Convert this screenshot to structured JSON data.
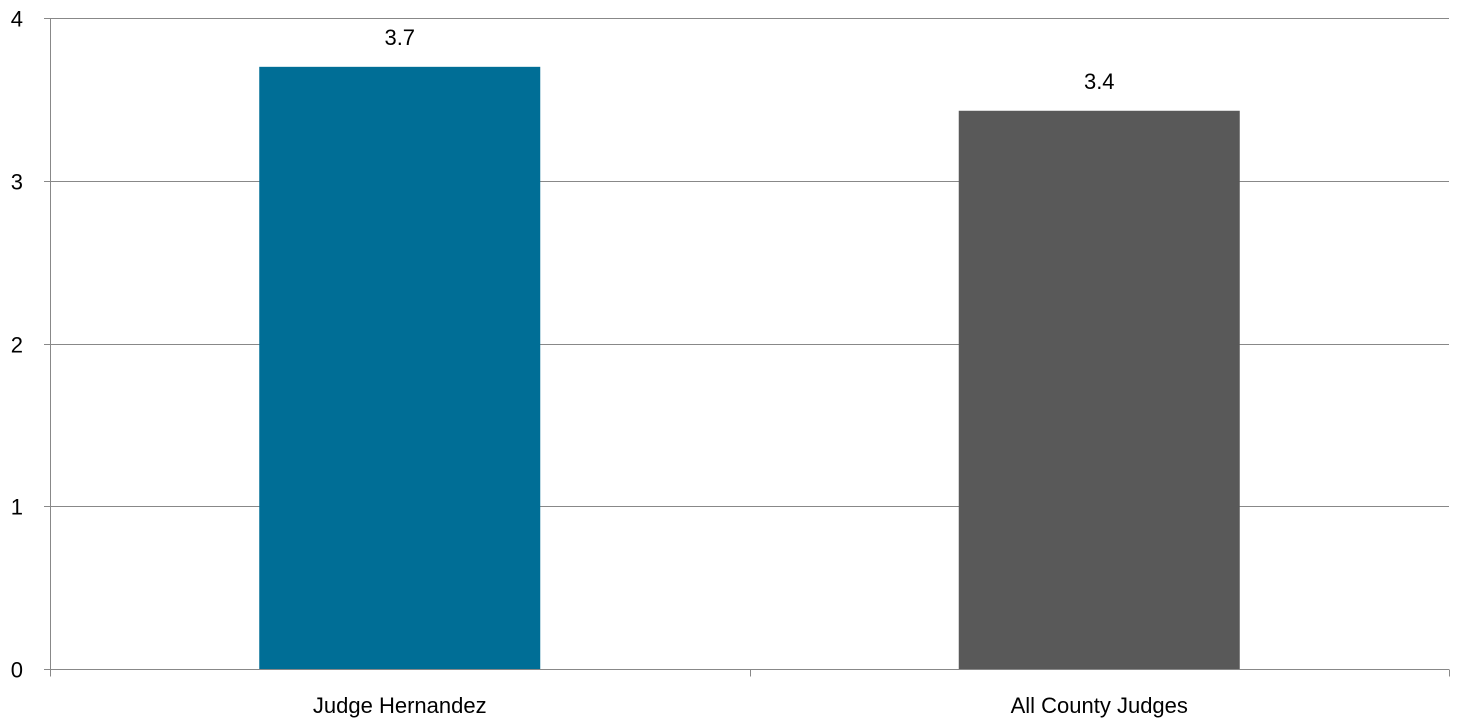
{
  "chart_data": {
    "type": "bar",
    "categories": [
      "Judge Hernandez",
      "All County Judges"
    ],
    "values": [
      3.7,
      3.43
    ],
    "data_labels": [
      "3.7",
      "3.4"
    ],
    "bar_colors": [
      "#006e96",
      "#595959"
    ],
    "ylim": [
      0,
      4
    ],
    "yticks": [
      0,
      1,
      2,
      3,
      4
    ],
    "grid": true,
    "gridline_color": "#888888",
    "legend": "none"
  }
}
